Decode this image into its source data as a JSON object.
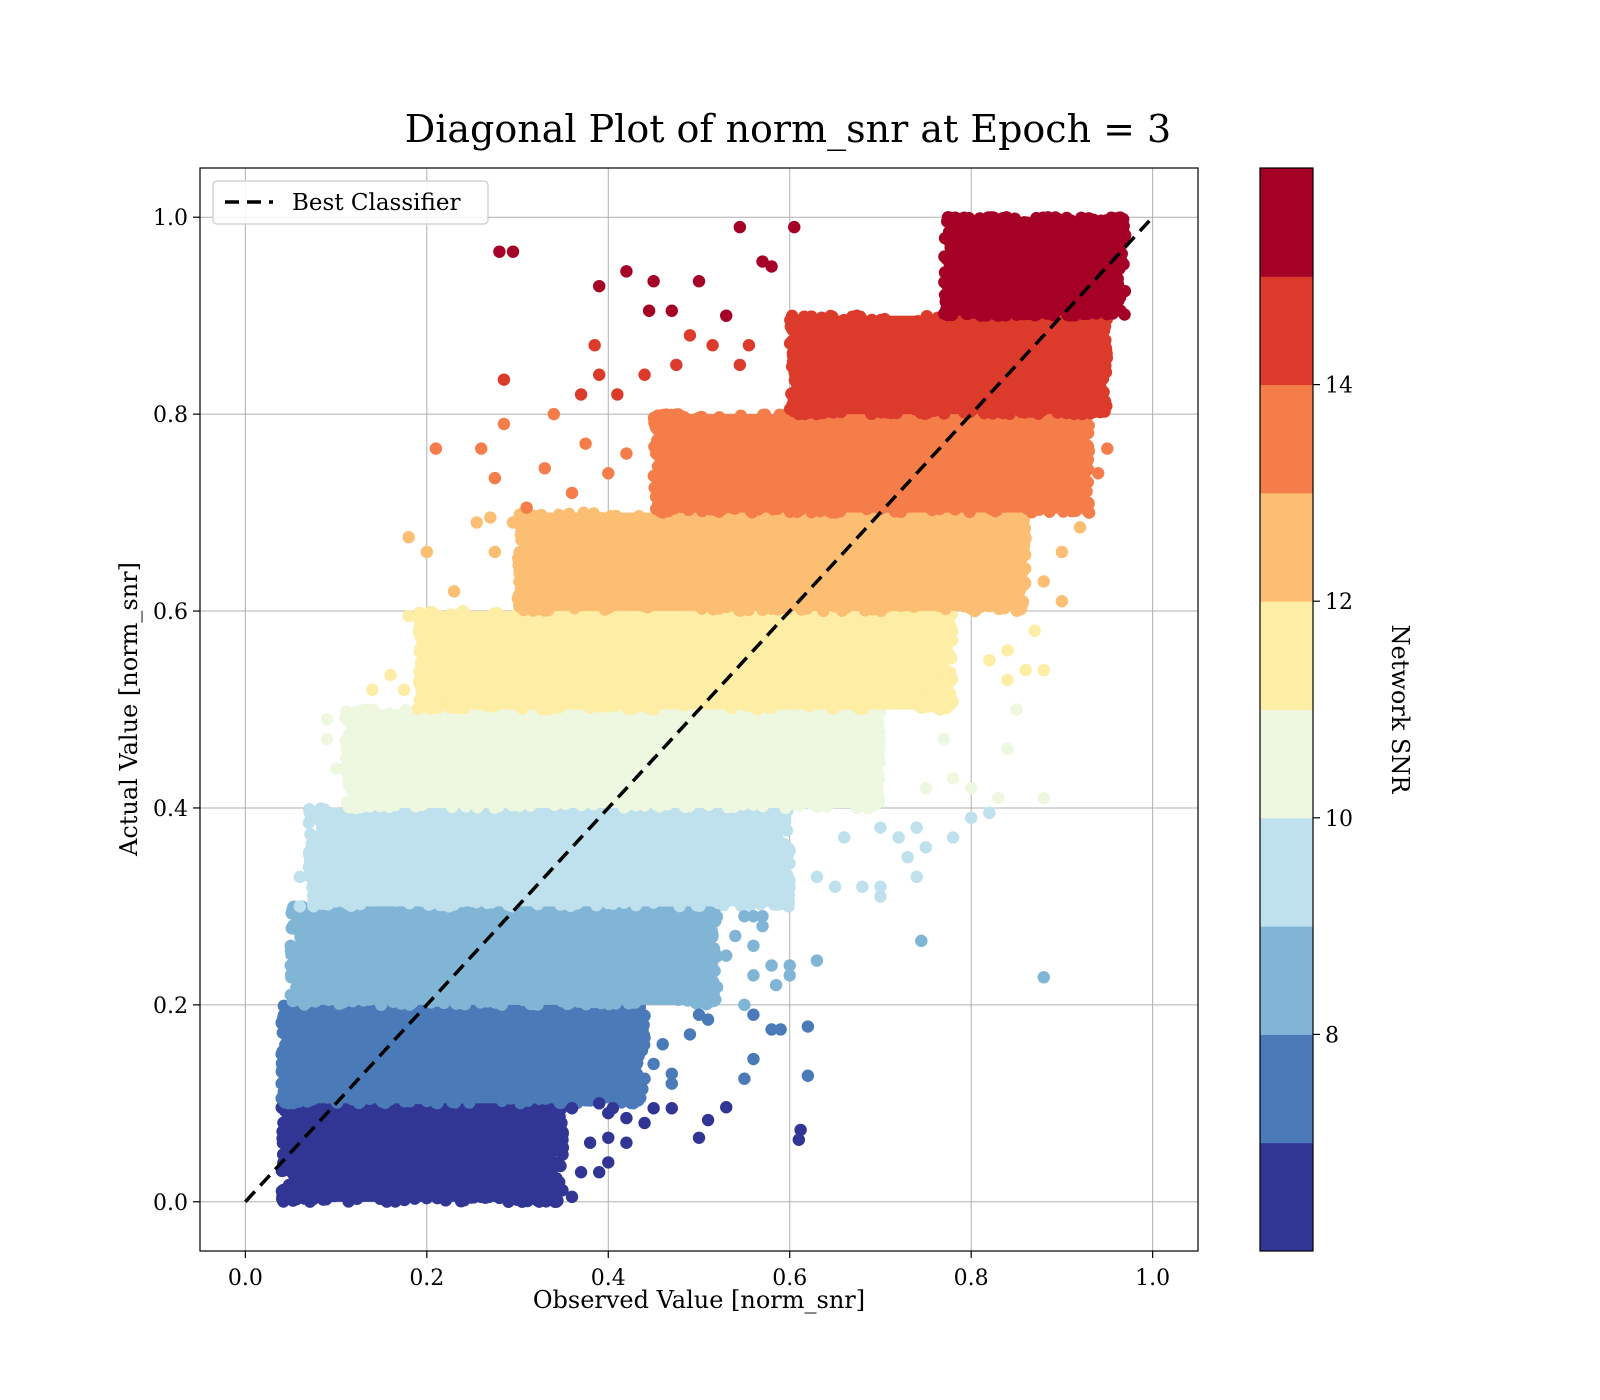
{
  "chart_data": {
    "type": "scatter",
    "title": "Diagonal Plot of norm_snr at Epoch = 3",
    "xlabel": "Observed Value [norm_snr]",
    "ylabel": "Actual Value [norm_snr]",
    "xlim": [
      -0.05,
      1.05
    ],
    "ylim": [
      -0.05,
      1.05
    ],
    "xticks": [
      "0.0",
      "0.2",
      "0.4",
      "0.6",
      "0.8",
      "1.0"
    ],
    "yticks": [
      "0.0",
      "0.2",
      "0.4",
      "0.6",
      "0.8",
      "1.0"
    ],
    "grid": true,
    "legend": {
      "placement": "upper-left",
      "entries": [
        "Best Classifier"
      ]
    },
    "reference_line": {
      "name": "Best Classifier",
      "style": "dashed",
      "color": "#000000",
      "x": [
        0,
        1
      ],
      "y": [
        0,
        1
      ]
    },
    "colorbar": {
      "label": "Network SNR",
      "range": [
        6,
        16
      ],
      "ticks": [
        "8",
        "10",
        "12",
        "14"
      ],
      "levels": [
        {
          "from": 6,
          "to": 7,
          "color": "#313695"
        },
        {
          "from": 7,
          "to": 8,
          "color": "#4a7ab7"
        },
        {
          "from": 8,
          "to": 9,
          "color": "#81b5d6"
        },
        {
          "from": 9,
          "to": 10,
          "color": "#bee1ed"
        },
        {
          "from": 10,
          "to": 11,
          "color": "#eef7df"
        },
        {
          "from": 11,
          "to": 12,
          "color": "#fdeda5"
        },
        {
          "from": 12,
          "to": 13,
          "color": "#fcbe72"
        },
        {
          "from": 13,
          "to": 14,
          "color": "#f57d4a"
        },
        {
          "from": 14,
          "to": 15,
          "color": "#dc3b2b"
        },
        {
          "from": 15,
          "to": 16,
          "color": "#a50026"
        }
      ]
    },
    "bands": [
      {
        "y_range": [
          0.0,
          0.1
        ],
        "x_range": [
          0.04,
          0.35
        ],
        "color": "#313695"
      },
      {
        "y_range": [
          0.1,
          0.2
        ],
        "x_range": [
          0.04,
          0.44
        ],
        "color": "#4a7ab7"
      },
      {
        "y_range": [
          0.2,
          0.3
        ],
        "x_range": [
          0.05,
          0.52
        ],
        "color": "#81b5d6"
      },
      {
        "y_range": [
          0.3,
          0.4
        ],
        "x_range": [
          0.07,
          0.6
        ],
        "color": "#bee1ed"
      },
      {
        "y_range": [
          0.4,
          0.5
        ],
        "x_range": [
          0.11,
          0.7
        ],
        "color": "#eef7df"
      },
      {
        "y_range": [
          0.5,
          0.6
        ],
        "x_range": [
          0.19,
          0.78
        ],
        "color": "#fdeda5"
      },
      {
        "y_range": [
          0.6,
          0.7
        ],
        "x_range": [
          0.3,
          0.86
        ],
        "color": "#fcbe72"
      },
      {
        "y_range": [
          0.7,
          0.8
        ],
        "x_range": [
          0.45,
          0.93
        ],
        "color": "#f57d4a"
      },
      {
        "y_range": [
          0.8,
          0.9
        ],
        "x_range": [
          0.6,
          0.95
        ],
        "color": "#dc3b2b"
      },
      {
        "y_range": [
          0.9,
          1.0
        ],
        "x_range": [
          0.77,
          0.97
        ],
        "color": "#a50026"
      }
    ],
    "points": [
      {
        "x": 0.28,
        "y": 0.965,
        "color": "#a50026"
      },
      {
        "x": 0.295,
        "y": 0.965,
        "color": "#a50026"
      },
      {
        "x": 0.39,
        "y": 0.93,
        "color": "#a50026"
      },
      {
        "x": 0.42,
        "y": 0.945,
        "color": "#a50026"
      },
      {
        "x": 0.45,
        "y": 0.935,
        "color": "#a50026"
      },
      {
        "x": 0.445,
        "y": 0.905,
        "color": "#a50026"
      },
      {
        "x": 0.47,
        "y": 0.905,
        "color": "#a50026"
      },
      {
        "x": 0.5,
        "y": 0.935,
        "color": "#a50026"
      },
      {
        "x": 0.545,
        "y": 0.99,
        "color": "#a50026"
      },
      {
        "x": 0.57,
        "y": 0.955,
        "color": "#a50026"
      },
      {
        "x": 0.605,
        "y": 0.99,
        "color": "#a50026"
      },
      {
        "x": 0.53,
        "y": 0.9,
        "color": "#a50026"
      },
      {
        "x": 0.555,
        "y": 0.87,
        "color": "#dc3b2b"
      },
      {
        "x": 0.58,
        "y": 0.95,
        "color": "#a50026"
      },
      {
        "x": 0.385,
        "y": 0.87,
        "color": "#dc3b2b"
      },
      {
        "x": 0.285,
        "y": 0.835,
        "color": "#dc3b2b"
      },
      {
        "x": 0.37,
        "y": 0.82,
        "color": "#dc3b2b"
      },
      {
        "x": 0.39,
        "y": 0.84,
        "color": "#dc3b2b"
      },
      {
        "x": 0.41,
        "y": 0.82,
        "color": "#dc3b2b"
      },
      {
        "x": 0.44,
        "y": 0.84,
        "color": "#dc3b2b"
      },
      {
        "x": 0.475,
        "y": 0.85,
        "color": "#dc3b2b"
      },
      {
        "x": 0.49,
        "y": 0.88,
        "color": "#dc3b2b"
      },
      {
        "x": 0.515,
        "y": 0.87,
        "color": "#dc3b2b"
      },
      {
        "x": 0.545,
        "y": 0.85,
        "color": "#dc3b2b"
      },
      {
        "x": 0.21,
        "y": 0.765,
        "color": "#f57d4a"
      },
      {
        "x": 0.26,
        "y": 0.765,
        "color": "#f57d4a"
      },
      {
        "x": 0.275,
        "y": 0.735,
        "color": "#f57d4a"
      },
      {
        "x": 0.285,
        "y": 0.79,
        "color": "#f57d4a"
      },
      {
        "x": 0.34,
        "y": 0.8,
        "color": "#f57d4a"
      },
      {
        "x": 0.33,
        "y": 0.745,
        "color": "#f57d4a"
      },
      {
        "x": 0.375,
        "y": 0.77,
        "color": "#f57d4a"
      },
      {
        "x": 0.31,
        "y": 0.705,
        "color": "#f57d4a"
      },
      {
        "x": 0.36,
        "y": 0.72,
        "color": "#f57d4a"
      },
      {
        "x": 0.4,
        "y": 0.74,
        "color": "#f57d4a"
      },
      {
        "x": 0.42,
        "y": 0.76,
        "color": "#f57d4a"
      },
      {
        "x": 0.95,
        "y": 0.765,
        "color": "#f57d4a"
      },
      {
        "x": 0.94,
        "y": 0.74,
        "color": "#f57d4a"
      },
      {
        "x": 0.18,
        "y": 0.675,
        "color": "#fcbe72"
      },
      {
        "x": 0.2,
        "y": 0.66,
        "color": "#fcbe72"
      },
      {
        "x": 0.23,
        "y": 0.62,
        "color": "#fcbe72"
      },
      {
        "x": 0.255,
        "y": 0.69,
        "color": "#fcbe72"
      },
      {
        "x": 0.275,
        "y": 0.66,
        "color": "#fcbe72"
      },
      {
        "x": 0.295,
        "y": 0.69,
        "color": "#fcbe72"
      },
      {
        "x": 0.27,
        "y": 0.695,
        "color": "#fcbe72"
      },
      {
        "x": 0.92,
        "y": 0.685,
        "color": "#fcbe72"
      },
      {
        "x": 0.9,
        "y": 0.66,
        "color": "#fcbe72"
      },
      {
        "x": 0.88,
        "y": 0.63,
        "color": "#fcbe72"
      },
      {
        "x": 0.9,
        "y": 0.61,
        "color": "#fcbe72"
      },
      {
        "x": 0.18,
        "y": 0.595,
        "color": "#fdeda5"
      },
      {
        "x": 0.16,
        "y": 0.535,
        "color": "#fdeda5"
      },
      {
        "x": 0.175,
        "y": 0.52,
        "color": "#fdeda5"
      },
      {
        "x": 0.14,
        "y": 0.52,
        "color": "#fdeda5"
      },
      {
        "x": 0.22,
        "y": 0.59,
        "color": "#fdeda5"
      },
      {
        "x": 0.2,
        "y": 0.55,
        "color": "#fdeda5"
      },
      {
        "x": 0.24,
        "y": 0.6,
        "color": "#fdeda5"
      },
      {
        "x": 0.82,
        "y": 0.55,
        "color": "#fdeda5"
      },
      {
        "x": 0.84,
        "y": 0.53,
        "color": "#fdeda5"
      },
      {
        "x": 0.86,
        "y": 0.54,
        "color": "#fdeda5"
      },
      {
        "x": 0.88,
        "y": 0.54,
        "color": "#fdeda5"
      },
      {
        "x": 0.87,
        "y": 0.58,
        "color": "#fdeda5"
      },
      {
        "x": 0.84,
        "y": 0.56,
        "color": "#fdeda5"
      },
      {
        "x": 0.09,
        "y": 0.49,
        "color": "#eef7df"
      },
      {
        "x": 0.09,
        "y": 0.47,
        "color": "#eef7df"
      },
      {
        "x": 0.1,
        "y": 0.44,
        "color": "#eef7df"
      },
      {
        "x": 0.12,
        "y": 0.41,
        "color": "#eef7df"
      },
      {
        "x": 0.14,
        "y": 0.49,
        "color": "#eef7df"
      },
      {
        "x": 0.16,
        "y": 0.47,
        "color": "#eef7df"
      },
      {
        "x": 0.78,
        "y": 0.43,
        "color": "#eef7df"
      },
      {
        "x": 0.8,
        "y": 0.42,
        "color": "#eef7df"
      },
      {
        "x": 0.83,
        "y": 0.41,
        "color": "#eef7df"
      },
      {
        "x": 0.84,
        "y": 0.46,
        "color": "#eef7df"
      },
      {
        "x": 0.85,
        "y": 0.5,
        "color": "#eef7df"
      },
      {
        "x": 0.88,
        "y": 0.41,
        "color": "#eef7df"
      },
      {
        "x": 0.75,
        "y": 0.42,
        "color": "#eef7df"
      },
      {
        "x": 0.77,
        "y": 0.47,
        "color": "#eef7df"
      },
      {
        "x": 0.06,
        "y": 0.33,
        "color": "#bee1ed"
      },
      {
        "x": 0.06,
        "y": 0.3,
        "color": "#bee1ed"
      },
      {
        "x": 0.07,
        "y": 0.385,
        "color": "#bee1ed"
      },
      {
        "x": 0.09,
        "y": 0.36,
        "color": "#bee1ed"
      },
      {
        "x": 0.7,
        "y": 0.38,
        "color": "#bee1ed"
      },
      {
        "x": 0.72,
        "y": 0.37,
        "color": "#bee1ed"
      },
      {
        "x": 0.74,
        "y": 0.38,
        "color": "#bee1ed"
      },
      {
        "x": 0.75,
        "y": 0.36,
        "color": "#bee1ed"
      },
      {
        "x": 0.73,
        "y": 0.35,
        "color": "#bee1ed"
      },
      {
        "x": 0.74,
        "y": 0.33,
        "color": "#bee1ed"
      },
      {
        "x": 0.7,
        "y": 0.31,
        "color": "#bee1ed"
      },
      {
        "x": 0.7,
        "y": 0.32,
        "color": "#bee1ed"
      },
      {
        "x": 0.68,
        "y": 0.32,
        "color": "#bee1ed"
      },
      {
        "x": 0.65,
        "y": 0.32,
        "color": "#bee1ed"
      },
      {
        "x": 0.63,
        "y": 0.33,
        "color": "#bee1ed"
      },
      {
        "x": 0.78,
        "y": 0.37,
        "color": "#bee1ed"
      },
      {
        "x": 0.8,
        "y": 0.39,
        "color": "#bee1ed"
      },
      {
        "x": 0.82,
        "y": 0.395,
        "color": "#bee1ed"
      },
      {
        "x": 0.66,
        "y": 0.37,
        "color": "#bee1ed"
      },
      {
        "x": 0.05,
        "y": 0.26,
        "color": "#81b5d6"
      },
      {
        "x": 0.05,
        "y": 0.21,
        "color": "#81b5d6"
      },
      {
        "x": 0.05,
        "y": 0.24,
        "color": "#81b5d6"
      },
      {
        "x": 0.55,
        "y": 0.29,
        "color": "#81b5d6"
      },
      {
        "x": 0.56,
        "y": 0.29,
        "color": "#81b5d6"
      },
      {
        "x": 0.57,
        "y": 0.29,
        "color": "#81b5d6"
      },
      {
        "x": 0.57,
        "y": 0.28,
        "color": "#81b5d6"
      },
      {
        "x": 0.56,
        "y": 0.26,
        "color": "#81b5d6"
      },
      {
        "x": 0.56,
        "y": 0.23,
        "color": "#81b5d6"
      },
      {
        "x": 0.58,
        "y": 0.24,
        "color": "#81b5d6"
      },
      {
        "x": 0.6,
        "y": 0.24,
        "color": "#81b5d6"
      },
      {
        "x": 0.6,
        "y": 0.23,
        "color": "#81b5d6"
      },
      {
        "x": 0.63,
        "y": 0.245,
        "color": "#81b5d6"
      },
      {
        "x": 0.55,
        "y": 0.2,
        "color": "#81b5d6"
      },
      {
        "x": 0.585,
        "y": 0.22,
        "color": "#81b5d6"
      },
      {
        "x": 0.745,
        "y": 0.265,
        "color": "#81b5d6"
      },
      {
        "x": 0.88,
        "y": 0.228,
        "color": "#81b5d6"
      },
      {
        "x": 0.53,
        "y": 0.25,
        "color": "#81b5d6"
      },
      {
        "x": 0.54,
        "y": 0.27,
        "color": "#81b5d6"
      },
      {
        "x": 0.04,
        "y": 0.15,
        "color": "#4a7ab7"
      },
      {
        "x": 0.04,
        "y": 0.12,
        "color": "#4a7ab7"
      },
      {
        "x": 0.04,
        "y": 0.105,
        "color": "#4a7ab7"
      },
      {
        "x": 0.5,
        "y": 0.19,
        "color": "#4a7ab7"
      },
      {
        "x": 0.51,
        "y": 0.185,
        "color": "#4a7ab7"
      },
      {
        "x": 0.56,
        "y": 0.19,
        "color": "#4a7ab7"
      },
      {
        "x": 0.58,
        "y": 0.175,
        "color": "#4a7ab7"
      },
      {
        "x": 0.59,
        "y": 0.175,
        "color": "#4a7ab7"
      },
      {
        "x": 0.62,
        "y": 0.178,
        "color": "#4a7ab7"
      },
      {
        "x": 0.56,
        "y": 0.145,
        "color": "#4a7ab7"
      },
      {
        "x": 0.55,
        "y": 0.125,
        "color": "#4a7ab7"
      },
      {
        "x": 0.62,
        "y": 0.128,
        "color": "#4a7ab7"
      },
      {
        "x": 0.46,
        "y": 0.16,
        "color": "#4a7ab7"
      },
      {
        "x": 0.47,
        "y": 0.13,
        "color": "#4a7ab7"
      },
      {
        "x": 0.47,
        "y": 0.12,
        "color": "#4a7ab7"
      },
      {
        "x": 0.49,
        "y": 0.17,
        "color": "#4a7ab7"
      },
      {
        "x": 0.45,
        "y": 0.14,
        "color": "#4a7ab7"
      },
      {
        "x": 0.44,
        "y": 0.125,
        "color": "#4a7ab7"
      },
      {
        "x": 0.41,
        "y": 0.175,
        "color": "#4a7ab7"
      },
      {
        "x": 0.43,
        "y": 0.19,
        "color": "#4a7ab7"
      },
      {
        "x": 0.36,
        "y": 0.095,
        "color": "#313695"
      },
      {
        "x": 0.38,
        "y": 0.06,
        "color": "#313695"
      },
      {
        "x": 0.37,
        "y": 0.03,
        "color": "#313695"
      },
      {
        "x": 0.36,
        "y": 0.005,
        "color": "#313695"
      },
      {
        "x": 0.4,
        "y": 0.04,
        "color": "#313695"
      },
      {
        "x": 0.4,
        "y": 0.065,
        "color": "#313695"
      },
      {
        "x": 0.4,
        "y": 0.09,
        "color": "#313695"
      },
      {
        "x": 0.42,
        "y": 0.085,
        "color": "#313695"
      },
      {
        "x": 0.42,
        "y": 0.06,
        "color": "#313695"
      },
      {
        "x": 0.44,
        "y": 0.08,
        "color": "#313695"
      },
      {
        "x": 0.45,
        "y": 0.095,
        "color": "#313695"
      },
      {
        "x": 0.405,
        "y": 0.095,
        "color": "#313695"
      },
      {
        "x": 0.39,
        "y": 0.1,
        "color": "#313695"
      },
      {
        "x": 0.39,
        "y": 0.03,
        "color": "#313695"
      },
      {
        "x": 0.34,
        "y": 0.04,
        "color": "#313695"
      },
      {
        "x": 0.34,
        "y": 0.015,
        "color": "#313695"
      },
      {
        "x": 0.33,
        "y": 0.02,
        "color": "#313695"
      },
      {
        "x": 0.31,
        "y": 0.01,
        "color": "#313695"
      },
      {
        "x": 0.47,
        "y": 0.095,
        "color": "#313695"
      },
      {
        "x": 0.5,
        "y": 0.065,
        "color": "#313695"
      },
      {
        "x": 0.51,
        "y": 0.083,
        "color": "#313695"
      },
      {
        "x": 0.53,
        "y": 0.096,
        "color": "#313695"
      },
      {
        "x": 0.61,
        "y": 0.063,
        "color": "#313695"
      },
      {
        "x": 0.612,
        "y": 0.073,
        "color": "#313695"
      },
      {
        "x": 0.29,
        "y": 0.0,
        "color": "#313695"
      },
      {
        "x": 0.27,
        "y": 0.02,
        "color": "#313695"
      },
      {
        "x": 0.26,
        "y": 0.005,
        "color": "#313695"
      },
      {
        "x": 0.3,
        "y": 0.05,
        "color": "#313695"
      },
      {
        "x": 0.28,
        "y": 0.06,
        "color": "#313695"
      },
      {
        "x": 0.32,
        "y": 0.07,
        "color": "#313695"
      },
      {
        "x": 0.35,
        "y": 0.055,
        "color": "#313695"
      }
    ]
  }
}
